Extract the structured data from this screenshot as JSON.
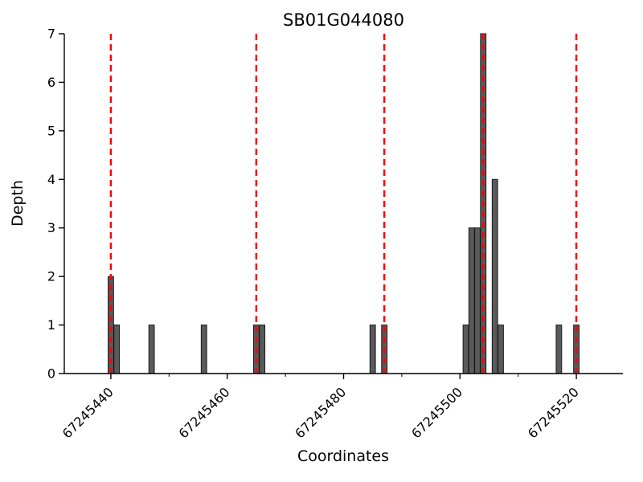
{
  "chart_data": {
    "type": "bar",
    "title": "SB01G044080",
    "xlabel": "Coordinates",
    "ylabel": "Depth",
    "xlim": [
      67245432,
      67245528
    ],
    "ylim": [
      0,
      7
    ],
    "xticks": [
      67245440,
      67245460,
      67245480,
      67245500,
      67245520
    ],
    "xminorticks": [
      67245450,
      67245470,
      67245490,
      67245510
    ],
    "yticks": [
      0,
      1,
      2,
      3,
      4,
      5,
      6,
      7
    ],
    "grid": false,
    "legend": null,
    "bars": [
      {
        "x": 67245440,
        "depth": 2
      },
      {
        "x": 67245441,
        "depth": 1
      },
      {
        "x": 67245447,
        "depth": 1
      },
      {
        "x": 67245456,
        "depth": 1
      },
      {
        "x": 67245465,
        "depth": 1
      },
      {
        "x": 67245466,
        "depth": 1
      },
      {
        "x": 67245485,
        "depth": 1
      },
      {
        "x": 67245487,
        "depth": 1
      },
      {
        "x": 67245501,
        "depth": 1
      },
      {
        "x": 67245502,
        "depth": 3
      },
      {
        "x": 67245503,
        "depth": 3
      },
      {
        "x": 67245504,
        "depth": 7
      },
      {
        "x": 67245506,
        "depth": 4
      },
      {
        "x": 67245507,
        "depth": 1
      },
      {
        "x": 67245517,
        "depth": 1
      },
      {
        "x": 67245520,
        "depth": 1
      }
    ],
    "marker_lines": [
      67245440,
      67245465,
      67245487,
      67245504,
      67245520
    ],
    "colors": {
      "bar_fill": "#5a5a5a",
      "bar_stroke": "#1a1a1a",
      "marker_line": "#ff0000",
      "axis": "#000000",
      "background": "#ffffff"
    }
  }
}
